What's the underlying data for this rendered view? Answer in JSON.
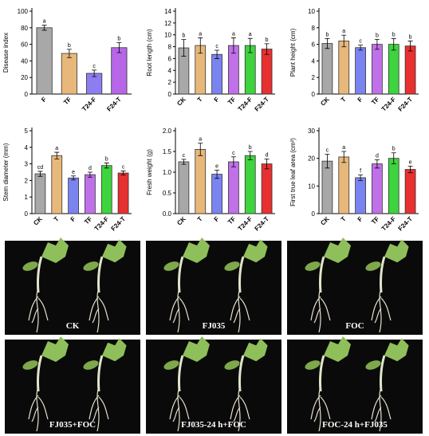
{
  "chart_data": [
    {
      "type": "bar",
      "y_label": "Disease index",
      "categories": [
        "F",
        "TF",
        "T24-F",
        "F24-T"
      ],
      "values": [
        80,
        49,
        25,
        56
      ],
      "errors": [
        3,
        5,
        4,
        6
      ],
      "annotations": [
        "a",
        "b",
        "c",
        "b"
      ],
      "colors": [
        "#a8a8a8",
        "#e8b87a",
        "#8c7ef0",
        "#b766e8"
      ],
      "ylim": [
        0,
        100
      ],
      "yticks": [
        0,
        20,
        40,
        60,
        80,
        100
      ]
    },
    {
      "type": "bar",
      "y_label": "Root length (cm)",
      "categories": [
        "CK",
        "T",
        "F",
        "TF",
        "T24-F",
        "F24-T"
      ],
      "values": [
        7.8,
        8.2,
        6.7,
        8.2,
        8.2,
        7.6
      ],
      "errors": [
        1.4,
        1.3,
        0.7,
        1.3,
        1.2,
        0.9
      ],
      "annotations": [
        "b",
        "a",
        "c",
        "a",
        "a",
        "b"
      ],
      "colors": [
        "#a8a8a8",
        "#e8b87a",
        "#7a84f0",
        "#c070e8",
        "#3ed43e",
        "#e83030"
      ],
      "ylim": [
        0,
        14
      ],
      "yticks": [
        0,
        2,
        4,
        6,
        8,
        10,
        12,
        14
      ]
    },
    {
      "type": "bar",
      "y_label": "Plant height (cm)",
      "categories": [
        "CK",
        "T",
        "F",
        "TF",
        "T24-F",
        "F24-T"
      ],
      "values": [
        6.1,
        6.4,
        5.6,
        6.0,
        6.0,
        5.8
      ],
      "errors": [
        0.6,
        0.7,
        0.3,
        0.6,
        0.7,
        0.6
      ],
      "annotations": [
        "b",
        "a",
        "c",
        "b",
        "b",
        "b"
      ],
      "colors": [
        "#a8a8a8",
        "#e8b87a",
        "#7a84f0",
        "#c070e8",
        "#3ed43e",
        "#e83030"
      ],
      "ylim": [
        0,
        10
      ],
      "yticks": [
        0,
        2,
        4,
        6,
        8,
        10
      ]
    },
    {
      "type": "bar",
      "y_label": "Stem diameter (mm)",
      "categories": [
        "CK",
        "T",
        "F",
        "TF",
        "T24-F",
        "F24-T"
      ],
      "values": [
        2.4,
        3.5,
        2.15,
        2.35,
        2.9,
        2.45
      ],
      "errors": [
        0.15,
        0.2,
        0.12,
        0.15,
        0.15,
        0.12
      ],
      "annotations": [
        "cd",
        "a",
        "e",
        "d",
        "b",
        "c"
      ],
      "colors": [
        "#a8a8a8",
        "#e8b87a",
        "#7a84f0",
        "#c070e8",
        "#3ed43e",
        "#e83030"
      ],
      "ylim": [
        0,
        5
      ],
      "yticks": [
        0,
        1,
        2,
        3,
        4,
        5
      ]
    },
    {
      "type": "bar",
      "y_label": "Fresh weight (g)",
      "categories": [
        "CK",
        "T",
        "F",
        "TF",
        "T24-F",
        "F24-T"
      ],
      "values": [
        1.25,
        1.55,
        0.95,
        1.25,
        1.4,
        1.2
      ],
      "errors": [
        0.06,
        0.15,
        0.1,
        0.12,
        0.1,
        0.12
      ],
      "annotations": [
        "c",
        "a",
        "e",
        "c",
        "b",
        "d"
      ],
      "colors": [
        "#a8a8a8",
        "#e8b87a",
        "#7a84f0",
        "#c070e8",
        "#3ed43e",
        "#e83030"
      ],
      "ylim": [
        0,
        2
      ],
      "yticks": [
        {
          "value": 0,
          "label": "0.0"
        },
        0.5,
        {
          "value": 1,
          "label": "1.0"
        },
        1.5,
        {
          "value": 2,
          "label": "2.0"
        }
      ]
    },
    {
      "type": "bar",
      "y_label": "First true leaf area (cm²)",
      "categories": [
        "CK",
        "T",
        "F",
        "TF",
        "T24-F",
        "F24-T"
      ],
      "values": [
        19,
        20.5,
        13,
        18,
        20,
        16
      ],
      "errors": [
        2.5,
        2,
        1,
        1.5,
        2,
        1.2
      ],
      "annotations": [
        "c",
        "a",
        "f",
        "d",
        "b",
        "e"
      ],
      "colors": [
        "#a8a8a8",
        "#e8b87a",
        "#7a84f0",
        "#c070e8",
        "#3ed43e",
        "#e83030"
      ],
      "ylim": [
        0,
        30
      ],
      "yticks": [
        0,
        10,
        20,
        30
      ]
    }
  ],
  "photos": {
    "labels": [
      "CK",
      "FJ035",
      "FOC",
      "FJ035+FOC",
      "FJ035-24 h+FOC",
      "FOC-24 h+FJ035"
    ]
  }
}
